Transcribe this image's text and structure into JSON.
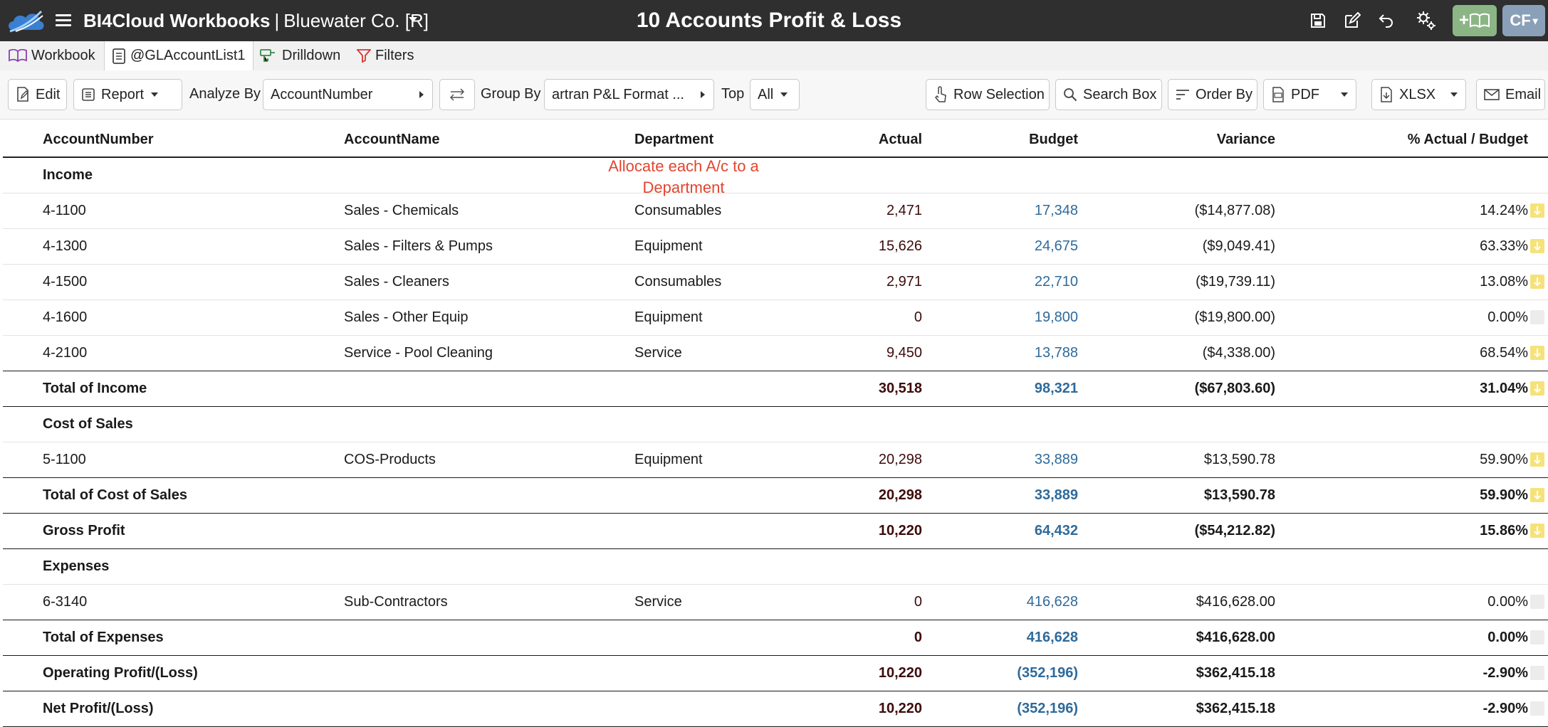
{
  "app": {
    "name": "BI4Cloud Workbooks",
    "separator": "|",
    "company": "Bluewater Co. [R]",
    "report_title": "10 Accounts Profit & Loss",
    "user_initials": "CF",
    "add_workbook_label": "+"
  },
  "tabs": [
    {
      "label": "Workbook",
      "icon": "book-icon"
    },
    {
      "label": "@GLAccountList1",
      "icon": "list-icon",
      "active": true
    },
    {
      "label": "Drilldown",
      "icon": "drill-icon"
    },
    {
      "label": "Filters",
      "icon": "filter-icon"
    }
  ],
  "toolbar": {
    "edit": "Edit",
    "report": "Report",
    "analyze_by_label": "Analyze By",
    "analyze_by_value": "AccountNumber",
    "group_by_label": "Group By",
    "group_by_value": "artran P&L Format ...",
    "top_label": "Top",
    "top_value": "All",
    "row_selection": "Row Selection",
    "search_box": "Search Box",
    "order_by": "Order By",
    "pdf": "PDF",
    "xlsx": "XLSX",
    "email": "Email"
  },
  "annotation": {
    "line1": "Allocate each A/c to a",
    "line2": "Department"
  },
  "table": {
    "columns": {
      "num": "AccountNumber",
      "name": "AccountName",
      "dept": "Department",
      "actual": "Actual",
      "budget": "Budget",
      "variance": "Variance",
      "pct": "% Actual / Budget"
    },
    "rows": [
      {
        "type": "section",
        "num": "Income"
      },
      {
        "type": "data",
        "num": "4-1100",
        "name": "Sales - Chemicals",
        "dept": "Consumables",
        "actual": "2,471",
        "budget": "17,348",
        "variance": "($14,877.08)",
        "pct": "14.24%",
        "flag": "down"
      },
      {
        "type": "data",
        "num": "4-1300",
        "name": "Sales - Filters & Pumps",
        "dept": "Equipment",
        "actual": "15,626",
        "budget": "24,675",
        "variance": "($9,049.41)",
        "pct": "63.33%",
        "flag": "down"
      },
      {
        "type": "data",
        "num": "4-1500",
        "name": "Sales - Cleaners",
        "dept": "Consumables",
        "actual": "2,971",
        "budget": "22,710",
        "variance": "($19,739.11)",
        "pct": "13.08%",
        "flag": "down"
      },
      {
        "type": "data",
        "num": "4-1600",
        "name": "Sales - Other Equip",
        "dept": "Equipment",
        "actual": "0",
        "budget": "19,800",
        "variance": "($19,800.00)",
        "pct": "0.00%",
        "flag": "none"
      },
      {
        "type": "data",
        "num": "4-2100",
        "name": "Service - Pool Cleaning",
        "dept": "Service",
        "actual": "9,450",
        "budget": "13,788",
        "variance": "($4,338.00)",
        "pct": "68.54%",
        "flag": "down"
      },
      {
        "type": "total",
        "num": "Total of Income",
        "actual": "30,518",
        "budget": "98,321",
        "variance": "($67,803.60)",
        "pct": "31.04%",
        "flag": "down"
      },
      {
        "type": "section",
        "num": "Cost of Sales"
      },
      {
        "type": "data",
        "num": "5-1100",
        "name": "COS-Products",
        "dept": "Equipment",
        "actual": "20,298",
        "budget": "33,889",
        "variance": "$13,590.78",
        "pct": "59.90%",
        "flag": "down"
      },
      {
        "type": "total",
        "num": "Total of Cost of Sales",
        "actual": "20,298",
        "budget": "33,889",
        "variance": "$13,590.78",
        "pct": "59.90%",
        "flag": "down"
      },
      {
        "type": "total",
        "num": "Gross Profit",
        "actual": "10,220",
        "budget": "64,432",
        "variance": "($54,212.82)",
        "pct": "15.86%",
        "flag": "down"
      },
      {
        "type": "section",
        "num": "Expenses"
      },
      {
        "type": "data",
        "num": "6-3140",
        "name": "Sub-Contractors",
        "dept": "Service",
        "actual": "0",
        "budget": "416,628",
        "variance": "$416,628.00",
        "pct": "0.00%",
        "flag": "none"
      },
      {
        "type": "total",
        "num": "Total of Expenses",
        "actual": "0",
        "budget": "416,628",
        "variance": "$416,628.00",
        "pct": "0.00%",
        "flag": "none"
      },
      {
        "type": "total",
        "num": "Operating Profit/(Loss)",
        "actual": "10,220",
        "budget": "(352,196)",
        "variance": "$362,415.18",
        "pct": "-2.90%",
        "flag": "none"
      },
      {
        "type": "total",
        "num": "Net Profit/(Loss)",
        "actual": "10,220",
        "budget": "(352,196)",
        "variance": "$362,415.18",
        "pct": "-2.90%",
        "flag": "none"
      }
    ]
  },
  "colors": {
    "topbar": "#2f2f2f",
    "budget_text": "#2f6a9a",
    "actual_text": "#3d0b0b",
    "annotation": "#e2462f",
    "flag_down": "#f6e27a",
    "add_button": "#8bb585",
    "user_button": "#8aa0b8"
  }
}
